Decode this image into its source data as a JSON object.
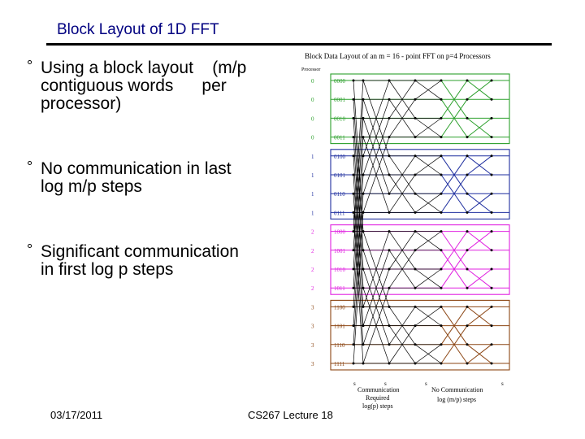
{
  "slide": {
    "title": "Block Layout of 1D FFT",
    "bullets": [
      {
        "line1": "Using a block layout    (m/p",
        "line2": "contiguous words      per",
        "line3": "processor)"
      },
      {
        "line1": "No communication in last",
        "line2": "log m/p steps"
      },
      {
        "line1": "Significant communication",
        "line2": "in first log p steps"
      }
    ],
    "footer_date": "03/17/2011",
    "footer_course": "CS267 Lecture 18"
  },
  "diagram": {
    "caption": "Block Data Layout of an m = 16 - point FFT on p=4 Processors",
    "processor_header": "Processor",
    "rows": [
      {
        "proc": "0",
        "bits": "0000"
      },
      {
        "proc": "0",
        "bits": "0001"
      },
      {
        "proc": "0",
        "bits": "0010"
      },
      {
        "proc": "0",
        "bits": "0011"
      },
      {
        "proc": "1",
        "bits": "0100"
      },
      {
        "proc": "1",
        "bits": "0101"
      },
      {
        "proc": "1",
        "bits": "0110"
      },
      {
        "proc": "1",
        "bits": "0111"
      },
      {
        "proc": "2",
        "bits": "1000"
      },
      {
        "proc": "2",
        "bits": "1001"
      },
      {
        "proc": "2",
        "bits": "1010"
      },
      {
        "proc": "2",
        "bits": "1011"
      },
      {
        "proc": "3",
        "bits": "1100"
      },
      {
        "proc": "3",
        "bits": "1101"
      },
      {
        "proc": "3",
        "bits": "1110"
      },
      {
        "proc": "3",
        "bits": "1111"
      }
    ],
    "block_colors": [
      "#2ca02c",
      "#1f2f9f",
      "#e020e0",
      "#8b4513"
    ],
    "stage_marks": [
      "s",
      "s",
      "s",
      "s"
    ],
    "label_comm": [
      "Communication",
      "Required",
      "log(p) steps"
    ],
    "label_nocomm": [
      "No Communication",
      "log (m/p) steps"
    ]
  }
}
